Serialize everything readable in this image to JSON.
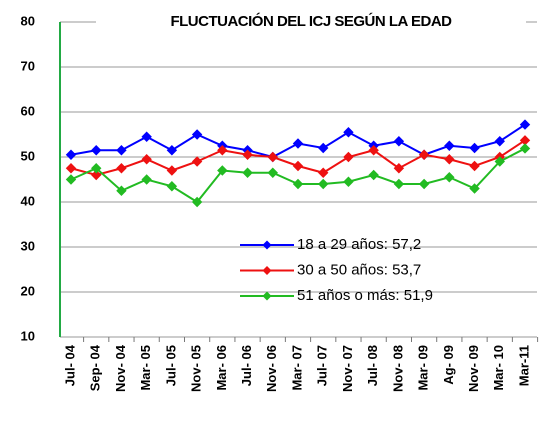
{
  "chart_data": {
    "type": "line",
    "title": "FLUCTUACIÓN DEL ICJ  SEGÚN LA EDAD",
    "categories": [
      "Jul- 04",
      "Sep- 04",
      "Nov- 04",
      "Mar- 05",
      "Jul- 05",
      "Nov- 05",
      "Mar- 06",
      "Jul- 06",
      "Nov- 06",
      "Mar- 07",
      "Jul- 07",
      "Nov- 07",
      "Jul- 08",
      "Nov- 08",
      "Mar- 09",
      "Ag- 09",
      "Nov- 09",
      "Mar- 10",
      "Mar-11"
    ],
    "series": [
      {
        "name": "18 a 29 años: 57,2",
        "color": "#0000ff",
        "values": [
          50.5,
          51.5,
          51.5,
          54.5,
          51.5,
          55,
          52.5,
          51.5,
          50,
          53,
          52,
          55.5,
          52.5,
          53.5,
          50.5,
          52.5,
          52,
          53.5,
          57.2
        ]
      },
      {
        "name": "30 a 50 años: 53,7",
        "color": "#ee1111",
        "values": [
          47.5,
          46,
          47.5,
          49.5,
          47,
          49,
          51.5,
          50.5,
          50,
          48,
          46.5,
          50,
          51.5,
          47.5,
          50.5,
          49.5,
          48,
          50,
          53.7
        ]
      },
      {
        "name": "51 años o más: 51,9",
        "color": "#22bb22",
        "values": [
          45,
          47.5,
          42.5,
          45,
          43.5,
          40,
          47,
          46.5,
          46.5,
          44,
          44,
          44.5,
          46,
          44,
          44,
          45.5,
          43,
          49,
          51.9
        ]
      }
    ],
    "ylim": [
      10,
      80
    ],
    "yticks": [
      10,
      20,
      30,
      40,
      50,
      60,
      70,
      80
    ],
    "grid": true
  }
}
